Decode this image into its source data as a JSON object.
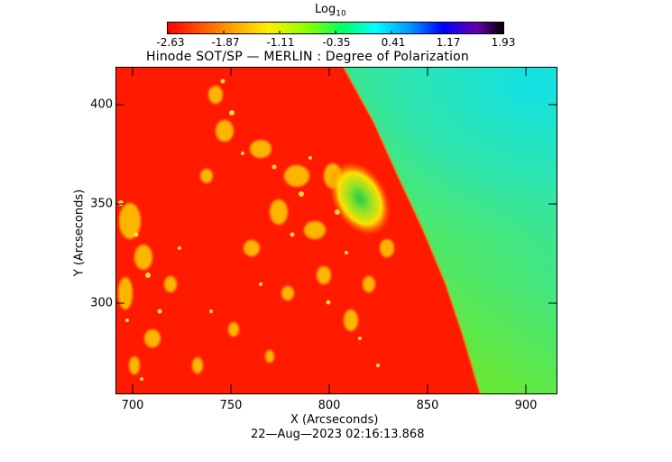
{
  "colorbar": {
    "label_main": "Log",
    "label_sub": "10",
    "ticks": [
      "-2.63",
      "-1.87",
      "-1.11",
      "-0.35",
      "0.41",
      "1.17",
      "1.93"
    ],
    "colors": [
      "#ff0000",
      "#ff8800",
      "#ffff00",
      "#88ff00",
      "#00ff88",
      "#00ffff",
      "#0088ff",
      "#0000ff",
      "#5500aa",
      "#000000"
    ]
  },
  "plot": {
    "title": "Hinode SOT/SP — MERLIN : Degree of Polarization",
    "xlabel": "X (Arcseconds)",
    "ylabel": "Y (Arcseconds)",
    "xticks": [
      "700",
      "750",
      "800",
      "850",
      "900"
    ],
    "yticks": [
      "400",
      "350",
      "300"
    ],
    "timestamp": "22—Aug—2023 02:16:13.868"
  },
  "image_colors": {
    "disk": "#ff1a00",
    "off_limb": "#7bea2a",
    "corona_high": "#14e6d2",
    "sunspot": "#2ecc40"
  }
}
